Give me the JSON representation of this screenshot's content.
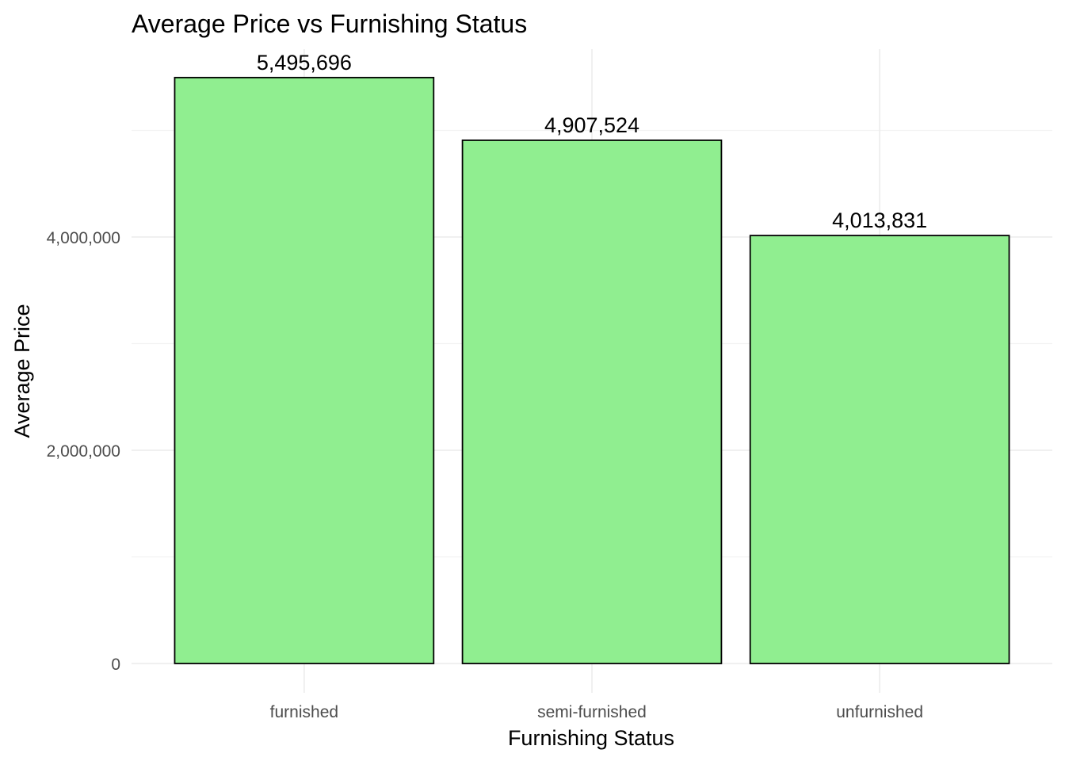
{
  "chart_data": {
    "type": "bar",
    "title": "Average Price vs Furnishing Status",
    "xlabel": "Furnishing Status",
    "ylabel": "Average Price",
    "categories": [
      "furnished",
      "semi-furnished",
      "unfurnished"
    ],
    "values": [
      5495696,
      4907524,
      4013831
    ],
    "value_labels": [
      "5,495,696",
      "4,907,524",
      "4,013,831"
    ],
    "y_ticks": [
      0,
      2000000,
      4000000
    ],
    "y_tick_labels": [
      "0",
      "2,000,000",
      "4,000,000"
    ],
    "ylim": [
      0,
      5700000
    ],
    "grid": true,
    "legend": "none",
    "colors": {
      "bar_fill": "#90EE90",
      "bar_outline": "#000000"
    }
  }
}
